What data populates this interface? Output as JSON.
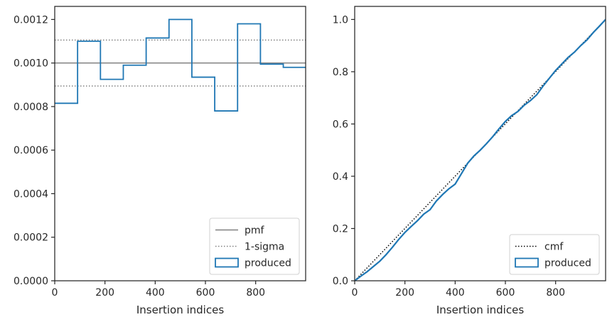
{
  "chart_data": [
    {
      "type": "histogram",
      "xlabel": "Insertion indices",
      "ylabel": "",
      "xlim": [
        0,
        999
      ],
      "ylim": [
        0,
        0.00126
      ],
      "x_ticks": [
        0,
        200,
        400,
        600,
        800
      ],
      "y_ticks": [
        0.0,
        0.0002,
        0.0004,
        0.0006,
        0.0008,
        0.001,
        0.0012
      ],
      "x_tick_labels": [
        "0",
        "200",
        "400",
        "600",
        "800"
      ],
      "y_tick_labels": [
        "0.0000",
        "0.0002",
        "0.0004",
        "0.0006",
        "0.0008",
        "0.0010",
        "0.0012"
      ],
      "bin_edges": [
        0,
        91,
        182,
        273,
        364,
        455,
        546,
        637,
        728,
        819,
        910,
        999
      ],
      "series": [
        {
          "name": "produced",
          "kind": "step",
          "color": "#1f77b4",
          "values": [
            0.000815,
            0.0011,
            0.000925,
            0.00099,
            0.001115,
            0.0012,
            0.000935,
            0.00078,
            0.00118,
            0.000995,
            0.00098
          ]
        }
      ],
      "reference_lines": [
        {
          "name": "pmf",
          "value": 0.001,
          "style": "solid",
          "color": "#808080"
        },
        {
          "name": "1-sigma",
          "values": [
            0.0011055,
            0.0008945
          ],
          "style": "dotted",
          "color": "#808080"
        }
      ],
      "legend": {
        "position": "lower-right",
        "entries": [
          {
            "label": "pmf",
            "style": "solid-line"
          },
          {
            "label": "1-sigma",
            "style": "dotted-line"
          },
          {
            "label": "produced",
            "style": "patch"
          }
        ]
      },
      "grid": false
    },
    {
      "type": "line",
      "xlabel": "Insertion indices",
      "ylabel": "",
      "xlim": [
        0,
        999
      ],
      "ylim": [
        0,
        1.05
      ],
      "x_ticks": [
        0,
        200,
        400,
        600,
        800
      ],
      "y_ticks": [
        0.0,
        0.2,
        0.4,
        0.6,
        0.8,
        1.0
      ],
      "x_tick_labels": [
        "0",
        "200",
        "400",
        "600",
        "800"
      ],
      "y_tick_labels": [
        "0.0",
        "0.2",
        "0.4",
        "0.6",
        "0.8",
        "1.0"
      ],
      "series": [
        {
          "name": "cmf",
          "style": "dotted",
          "color": "#000000",
          "x": [
            0,
            999
          ],
          "y": [
            0,
            1
          ]
        },
        {
          "name": "produced",
          "style": "solid",
          "color": "#1f77b4",
          "x": [
            0,
            25,
            50,
            75,
            100,
            125,
            150,
            175,
            200,
            225,
            250,
            275,
            300,
            325,
            350,
            375,
            400,
            425,
            450,
            475,
            500,
            525,
            550,
            575,
            600,
            625,
            650,
            675,
            700,
            725,
            750,
            775,
            800,
            825,
            850,
            875,
            900,
            925,
            950,
            975,
            999
          ],
          "y": [
            0.0,
            0.018,
            0.035,
            0.055,
            0.075,
            0.1,
            0.128,
            0.158,
            0.185,
            0.208,
            0.23,
            0.255,
            0.272,
            0.305,
            0.33,
            0.352,
            0.37,
            0.41,
            0.45,
            0.478,
            0.5,
            0.525,
            0.552,
            0.582,
            0.61,
            0.632,
            0.648,
            0.672,
            0.69,
            0.712,
            0.745,
            0.775,
            0.805,
            0.83,
            0.855,
            0.875,
            0.9,
            0.922,
            0.95,
            0.975,
            1.0
          ]
        }
      ],
      "legend": {
        "position": "lower-right",
        "entries": [
          {
            "label": "cmf",
            "style": "dotted-line"
          },
          {
            "label": "produced",
            "style": "patch"
          }
        ]
      },
      "grid": false
    }
  ]
}
